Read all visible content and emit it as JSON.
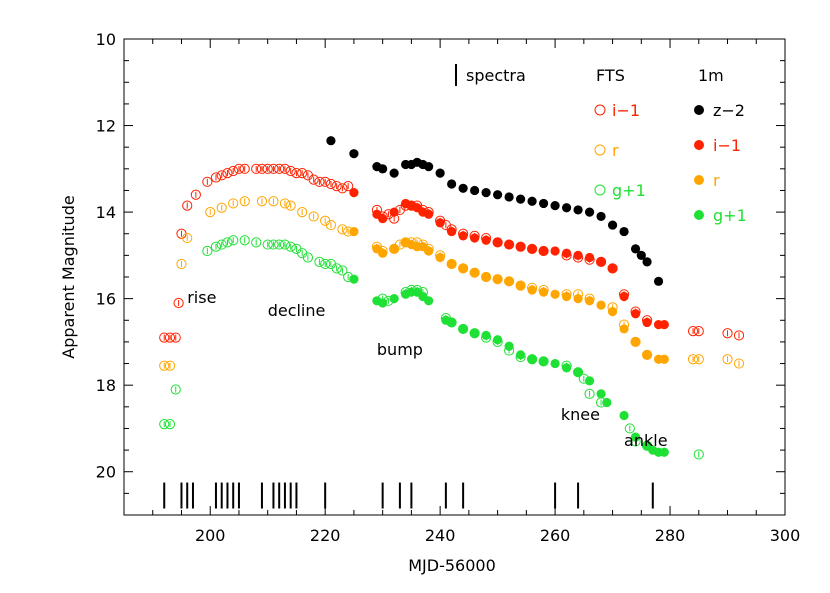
{
  "chart_data": {
    "type": "scatter",
    "xlabel": "MJD-56000",
    "ylabel": "Apparent Magnitude",
    "xlim": [
      185,
      300
    ],
    "ylim": [
      21,
      10
    ],
    "y_inverted": true,
    "x_ticks": [
      200,
      220,
      240,
      260,
      280,
      300
    ],
    "y_ticks": [
      10,
      12,
      14,
      16,
      18,
      20
    ],
    "grid": false,
    "colors": {
      "black": "#000000",
      "red": "#ff2200",
      "orange": "#ffa500",
      "green": "#1fe035"
    },
    "legend": {
      "spectra_label": "spectra",
      "fts_header": "FTS",
      "onem_header": "1m",
      "fts_entries": [
        {
          "label": "i−1",
          "color": "#ff2200"
        },
        {
          "label": "r",
          "color": "#ffa500"
        },
        {
          "label": "g+1",
          "color": "#1fe035"
        }
      ],
      "onem_entries": [
        {
          "label": "z−2",
          "color": "#000000"
        },
        {
          "label": "i−1",
          "color": "#ff2200"
        },
        {
          "label": "r",
          "color": "#ffa500"
        },
        {
          "label": "g+1",
          "color": "#1fe035"
        }
      ]
    },
    "annotations": [
      {
        "text": "rise",
        "x": 196,
        "y": 16.1
      },
      {
        "text": "decline",
        "x": 210,
        "y": 16.4
      },
      {
        "text": "bump",
        "x": 229,
        "y": 17.3
      },
      {
        "text": "knee",
        "x": 261,
        "y": 18.8
      },
      {
        "text": "ankle",
        "x": 272,
        "y": 19.4
      }
    ],
    "spectra_epochs": [
      192,
      195,
      196,
      197,
      201,
      202,
      203,
      204,
      205,
      209,
      211,
      212,
      213,
      214,
      215,
      220,
      230,
      233,
      235,
      241,
      244,
      260,
      264,
      277
    ],
    "series": [
      {
        "name": "FTS i−1",
        "color": "#ff2200",
        "marker": "open",
        "points": [
          [
            192,
            16.9
          ],
          [
            193,
            16.9
          ],
          [
            194,
            16.9
          ],
          [
            194.5,
            16.1
          ],
          [
            195,
            14.5
          ],
          [
            196,
            13.85
          ],
          [
            197.5,
            13.6
          ],
          [
            199.5,
            13.3
          ],
          [
            201,
            13.2
          ],
          [
            202,
            13.15
          ],
          [
            203,
            13.1
          ],
          [
            204,
            13.05
          ],
          [
            205,
            13.0
          ],
          [
            206,
            13.0
          ],
          [
            208,
            13.0
          ],
          [
            209,
            13.0
          ],
          [
            210,
            13.0
          ],
          [
            211,
            13.0
          ],
          [
            212,
            13.0
          ],
          [
            213,
            13.0
          ],
          [
            214,
            13.05
          ],
          [
            215,
            13.1
          ],
          [
            216,
            13.1
          ],
          [
            217,
            13.15
          ],
          [
            218,
            13.25
          ],
          [
            219,
            13.3
          ],
          [
            220,
            13.3
          ],
          [
            221,
            13.35
          ],
          [
            222,
            13.4
          ],
          [
            223,
            13.45
          ],
          [
            224,
            13.4
          ],
          [
            229,
            13.95
          ],
          [
            230,
            14.1
          ],
          [
            231,
            14.05
          ],
          [
            232,
            14.15
          ],
          [
            233,
            13.95
          ],
          [
            234,
            13.85
          ],
          [
            235,
            13.85
          ],
          [
            236,
            13.85
          ],
          [
            237,
            13.95
          ],
          [
            238,
            14.0
          ],
          [
            240,
            14.2
          ],
          [
            241,
            14.3
          ],
          [
            242,
            14.4
          ],
          [
            244,
            14.5
          ],
          [
            246,
            14.55
          ],
          [
            248,
            14.6
          ],
          [
            250,
            14.7
          ],
          [
            252,
            14.75
          ],
          [
            254,
            14.8
          ],
          [
            256,
            14.85
          ],
          [
            258,
            14.9
          ],
          [
            262,
            15.0
          ],
          [
            264,
            15.05
          ],
          [
            266,
            15.1
          ],
          [
            268,
            15.15
          ],
          [
            270,
            15.3
          ],
          [
            272,
            15.9
          ],
          [
            274,
            16.3
          ],
          [
            276,
            16.5
          ],
          [
            284,
            16.75
          ],
          [
            285,
            16.75
          ],
          [
            290,
            16.8
          ],
          [
            292,
            16.85
          ]
        ]
      },
      {
        "name": "FTS r",
        "color": "#ffa500",
        "marker": "open",
        "points": [
          [
            192,
            17.55
          ],
          [
            193,
            17.55
          ],
          [
            195,
            15.2
          ],
          [
            196,
            14.6
          ],
          [
            200,
            14.0
          ],
          [
            202,
            13.9
          ],
          [
            204,
            13.8
          ],
          [
            206,
            13.75
          ],
          [
            209,
            13.75
          ],
          [
            211,
            13.75
          ],
          [
            213,
            13.8
          ],
          [
            214,
            13.85
          ],
          [
            216,
            14.0
          ],
          [
            218,
            14.1
          ],
          [
            220,
            14.2
          ],
          [
            221,
            14.3
          ],
          [
            223,
            14.4
          ],
          [
            224,
            14.45
          ],
          [
            229,
            14.8
          ],
          [
            230,
            14.9
          ],
          [
            232,
            14.85
          ],
          [
            233,
            14.75
          ],
          [
            234,
            14.7
          ],
          [
            235,
            14.7
          ],
          [
            236,
            14.7
          ],
          [
            237,
            14.75
          ],
          [
            238,
            14.85
          ],
          [
            240,
            15.0
          ],
          [
            242,
            15.2
          ],
          [
            244,
            15.3
          ],
          [
            246,
            15.4
          ],
          [
            248,
            15.5
          ],
          [
            250,
            15.55
          ],
          [
            252,
            15.6
          ],
          [
            254,
            15.7
          ],
          [
            256,
            15.75
          ],
          [
            258,
            15.8
          ],
          [
            262,
            15.9
          ],
          [
            264,
            15.9
          ],
          [
            266,
            16.0
          ],
          [
            270,
            16.2
          ],
          [
            272,
            16.6
          ],
          [
            274,
            17.0
          ],
          [
            276,
            17.3
          ],
          [
            284,
            17.4
          ],
          [
            285,
            17.4
          ],
          [
            290,
            17.4
          ],
          [
            292,
            17.5
          ]
        ]
      },
      {
        "name": "FTS g+1",
        "color": "#1fe035",
        "marker": "open",
        "points": [
          [
            192,
            18.9
          ],
          [
            193,
            18.9
          ],
          [
            194,
            18.1
          ],
          [
            199.5,
            14.9
          ],
          [
            201,
            14.8
          ],
          [
            202,
            14.75
          ],
          [
            203,
            14.7
          ],
          [
            204,
            14.65
          ],
          [
            206,
            14.65
          ],
          [
            208,
            14.7
          ],
          [
            210,
            14.75
          ],
          [
            211,
            14.75
          ],
          [
            212,
            14.75
          ],
          [
            213,
            14.75
          ],
          [
            214,
            14.8
          ],
          [
            215,
            14.85
          ],
          [
            216,
            14.95
          ],
          [
            217,
            15.05
          ],
          [
            219,
            15.15
          ],
          [
            220,
            15.2
          ],
          [
            221,
            15.2
          ],
          [
            222,
            15.3
          ],
          [
            223,
            15.35
          ],
          [
            224,
            15.5
          ],
          [
            230,
            16.0
          ],
          [
            231,
            16.05
          ],
          [
            234,
            15.85
          ],
          [
            235,
            15.8
          ],
          [
            236,
            15.8
          ],
          [
            237,
            15.85
          ],
          [
            241,
            16.45
          ],
          [
            242,
            16.55
          ],
          [
            244,
            16.7
          ],
          [
            246,
            16.8
          ],
          [
            248,
            16.9
          ],
          [
            250,
            17.0
          ],
          [
            252,
            17.2
          ],
          [
            254,
            17.35
          ],
          [
            256,
            17.4
          ],
          [
            258,
            17.45
          ],
          [
            262,
            17.55
          ],
          [
            264,
            17.7
          ],
          [
            265,
            17.85
          ],
          [
            266,
            18.2
          ],
          [
            268,
            18.4
          ],
          [
            273,
            19.0
          ],
          [
            274,
            19.3
          ],
          [
            276,
            19.4
          ],
          [
            285,
            19.6
          ]
        ]
      },
      {
        "name": "1m z−2",
        "color": "#000000",
        "marker": "filled",
        "points": [
          [
            221,
            12.35
          ],
          [
            225,
            12.65
          ],
          [
            229,
            12.95
          ],
          [
            230,
            13.0
          ],
          [
            232,
            13.1
          ],
          [
            234,
            12.9
          ],
          [
            235,
            12.9
          ],
          [
            236,
            12.85
          ],
          [
            237,
            12.9
          ],
          [
            238,
            12.95
          ],
          [
            240,
            13.1
          ],
          [
            242,
            13.35
          ],
          [
            244,
            13.45
          ],
          [
            246,
            13.5
          ],
          [
            248,
            13.55
          ],
          [
            250,
            13.6
          ],
          [
            252,
            13.65
          ],
          [
            254,
            13.7
          ],
          [
            256,
            13.75
          ],
          [
            258,
            13.8
          ],
          [
            260,
            13.85
          ],
          [
            262,
            13.9
          ],
          [
            264,
            13.95
          ],
          [
            266,
            14.0
          ],
          [
            268,
            14.1
          ],
          [
            270,
            14.3
          ],
          [
            272,
            14.45
          ],
          [
            274,
            14.85
          ],
          [
            275,
            15.0
          ],
          [
            276,
            15.15
          ],
          [
            278,
            15.6
          ]
        ]
      },
      {
        "name": "1m i−1",
        "color": "#ff2200",
        "marker": "filled",
        "points": [
          [
            225,
            13.55
          ],
          [
            229,
            14.05
          ],
          [
            230,
            14.15
          ],
          [
            232,
            14.0
          ],
          [
            234,
            13.8
          ],
          [
            235,
            13.85
          ],
          [
            236,
            13.9
          ],
          [
            237,
            14.0
          ],
          [
            238,
            14.05
          ],
          [
            240,
            14.25
          ],
          [
            242,
            14.45
          ],
          [
            244,
            14.55
          ],
          [
            246,
            14.6
          ],
          [
            248,
            14.65
          ],
          [
            250,
            14.7
          ],
          [
            252,
            14.75
          ],
          [
            254,
            14.8
          ],
          [
            256,
            14.85
          ],
          [
            258,
            14.9
          ],
          [
            260,
            14.9
          ],
          [
            262,
            14.95
          ],
          [
            264,
            15.0
          ],
          [
            266,
            15.05
          ],
          [
            268,
            15.15
          ],
          [
            270,
            15.3
          ],
          [
            272,
            15.95
          ],
          [
            274,
            16.35
          ],
          [
            276,
            16.55
          ],
          [
            278,
            16.6
          ],
          [
            279,
            16.6
          ]
        ]
      },
      {
        "name": "1m r",
        "color": "#ffa500",
        "marker": "filled",
        "points": [
          [
            225,
            14.45
          ],
          [
            229,
            14.85
          ],
          [
            230,
            14.95
          ],
          [
            232,
            14.85
          ],
          [
            234,
            14.7
          ],
          [
            235,
            14.75
          ],
          [
            236,
            14.8
          ],
          [
            237,
            14.8
          ],
          [
            238,
            14.9
          ],
          [
            240,
            15.05
          ],
          [
            242,
            15.2
          ],
          [
            244,
            15.3
          ],
          [
            246,
            15.4
          ],
          [
            248,
            15.5
          ],
          [
            250,
            15.55
          ],
          [
            252,
            15.6
          ],
          [
            254,
            15.7
          ],
          [
            256,
            15.8
          ],
          [
            258,
            15.85
          ],
          [
            260,
            15.9
          ],
          [
            262,
            15.95
          ],
          [
            264,
            16.0
          ],
          [
            266,
            16.05
          ],
          [
            268,
            16.15
          ],
          [
            270,
            16.3
          ],
          [
            272,
            16.7
          ],
          [
            274,
            17.0
          ],
          [
            276,
            17.3
          ],
          [
            278,
            17.4
          ],
          [
            279,
            17.4
          ]
        ]
      },
      {
        "name": "1m g+1",
        "color": "#1fe035",
        "marker": "filled",
        "points": [
          [
            225,
            15.55
          ],
          [
            229,
            16.05
          ],
          [
            230,
            16.1
          ],
          [
            232,
            16.0
          ],
          [
            234,
            15.9
          ],
          [
            235,
            15.85
          ],
          [
            236,
            15.85
          ],
          [
            237,
            15.95
          ],
          [
            238,
            16.05
          ],
          [
            241,
            16.5
          ],
          [
            242,
            16.55
          ],
          [
            244,
            16.7
          ],
          [
            246,
            16.8
          ],
          [
            248,
            16.85
          ],
          [
            250,
            16.95
          ],
          [
            252,
            17.1
          ],
          [
            254,
            17.3
          ],
          [
            256,
            17.4
          ],
          [
            258,
            17.45
          ],
          [
            260,
            17.5
          ],
          [
            262,
            17.6
          ],
          [
            264,
            17.7
          ],
          [
            266,
            17.9
          ],
          [
            268,
            18.2
          ],
          [
            269,
            18.4
          ],
          [
            272,
            18.7
          ],
          [
            274,
            19.2
          ],
          [
            276,
            19.4
          ],
          [
            277,
            19.5
          ],
          [
            278,
            19.55
          ],
          [
            279,
            19.55
          ]
        ]
      }
    ]
  }
}
